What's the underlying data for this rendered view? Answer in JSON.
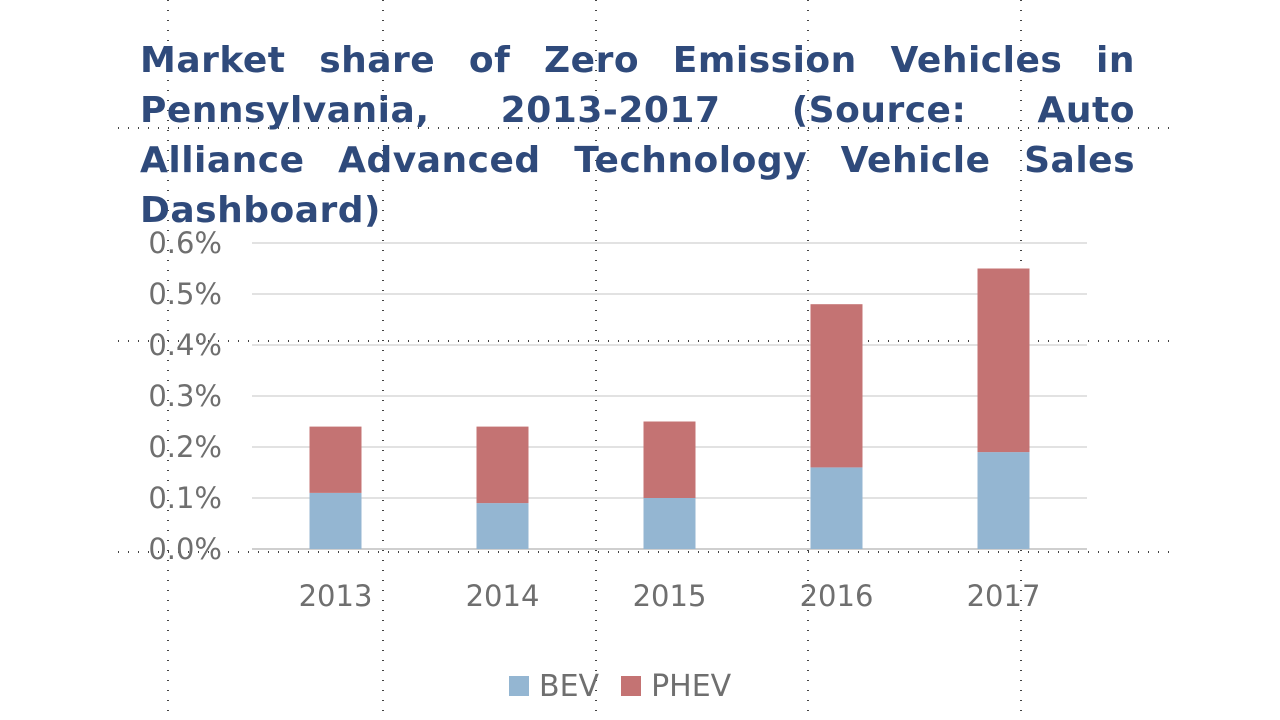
{
  "chart_data": {
    "type": "bar",
    "stacked": true,
    "title": "Market share of Zero Emission Vehicles in Pennsylvania, 2013-2017 (Source: Auto Alliance Advanced Technology Vehicle Sales Dashboard)",
    "xlabel": "",
    "ylabel": "",
    "categories": [
      "2013",
      "2014",
      "2015",
      "2016",
      "2017"
    ],
    "series": [
      {
        "name": "BEV",
        "color": "#94b6d2",
        "values": [
          0.11,
          0.09,
          0.1,
          0.16,
          0.19
        ]
      },
      {
        "name": "PHEV",
        "color": "#c47373",
        "values": [
          0.13,
          0.15,
          0.15,
          0.32,
          0.36
        ]
      }
    ],
    "ylim": [
      0,
      0.6
    ],
    "yticks": [
      0.0,
      0.1,
      0.2,
      0.3,
      0.4,
      0.5,
      0.6
    ],
    "ytick_labels": [
      "0.0%",
      "0.1%",
      "0.2%",
      "0.3%",
      "0.4%",
      "0.5%",
      "0.6%"
    ],
    "grid": true,
    "legend_position": "bottom"
  }
}
